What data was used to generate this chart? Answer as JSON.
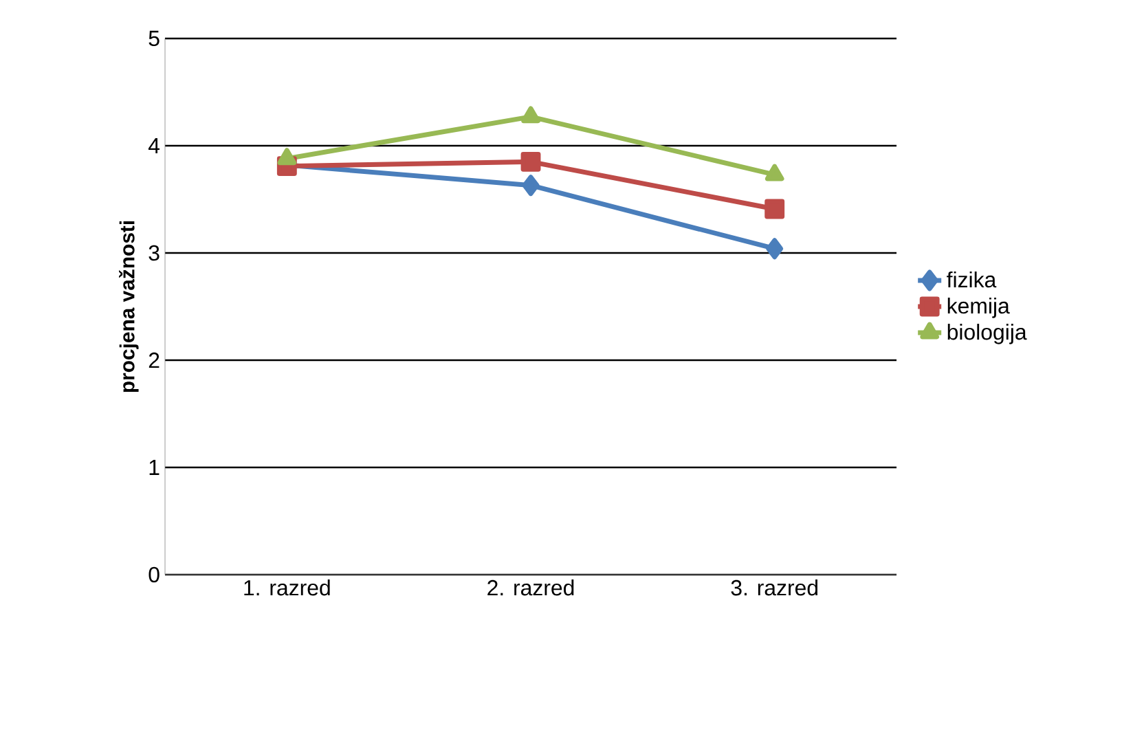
{
  "chart_data": {
    "type": "line",
    "ylabel": "procjena važnosti",
    "categories": [
      "1. razred",
      "2. razred",
      "3. razred"
    ],
    "series": [
      {
        "name": "fizika",
        "color": "#4a7ebb",
        "marker": "diamond",
        "values": [
          3.82,
          3.63,
          3.04
        ]
      },
      {
        "name": "kemija",
        "color": "#be4b48",
        "marker": "square",
        "values": [
          3.81,
          3.85,
          3.41
        ]
      },
      {
        "name": "biologija",
        "color": "#98b954",
        "marker": "triangle",
        "values": [
          3.88,
          4.27,
          3.73
        ]
      }
    ],
    "ylim": [
      0,
      5
    ],
    "yticks": [
      0,
      1,
      2,
      3,
      4,
      5
    ],
    "grid": "y",
    "legend": "right"
  }
}
